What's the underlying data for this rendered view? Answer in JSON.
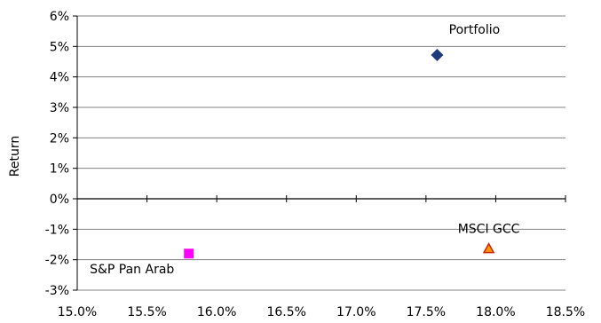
{
  "chart_data": {
    "type": "scatter",
    "title": "",
    "xlabel": "",
    "ylabel": "Return",
    "xlim": [
      0.15,
      0.185
    ],
    "ylim": [
      -0.03,
      0.06
    ],
    "x_ticks": [
      "15.0%",
      "15.5%",
      "16.0%",
      "16.5%",
      "17.0%",
      "17.5%",
      "18.0%",
      "18.5%"
    ],
    "y_ticks": [
      "6%",
      "5%",
      "4%",
      "3%",
      "2%",
      "1%",
      "0%",
      "-1%",
      "-2%",
      "-3%"
    ],
    "grid": "horizontal",
    "legend": "none",
    "points": [
      {
        "label": "Portfolio",
        "x": 0.1758,
        "y": 0.0472,
        "marker": "diamond",
        "color": "#1f3a7a"
      },
      {
        "label": "MSCI GCC",
        "x": 0.1795,
        "y": -0.0165,
        "marker": "triangle",
        "color": "#cc2200"
      },
      {
        "label": "S&P Pan Arab",
        "x": 0.158,
        "y": -0.018,
        "marker": "square",
        "color": "#ff00ff"
      }
    ]
  }
}
